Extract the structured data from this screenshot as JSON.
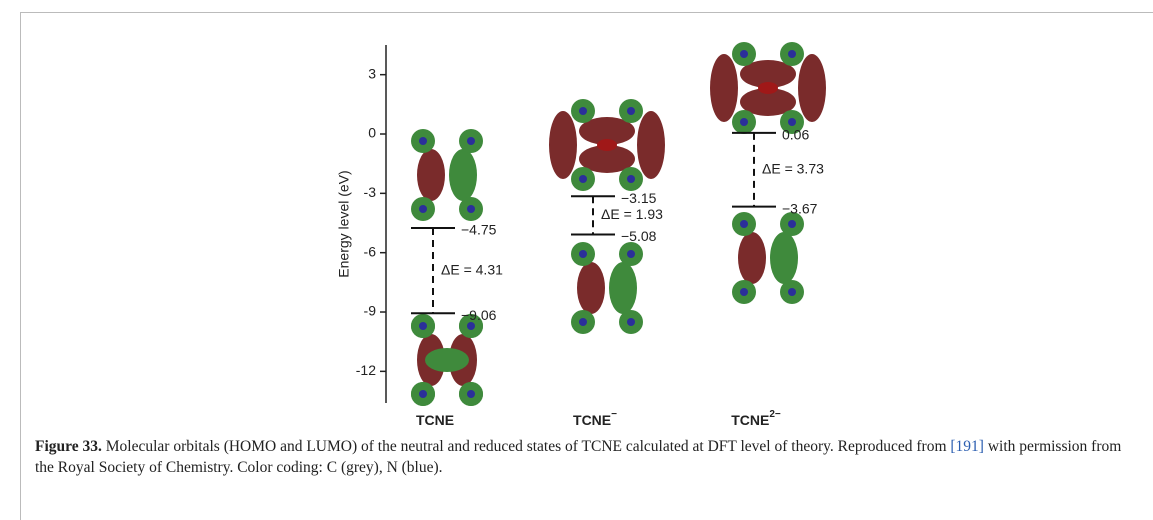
{
  "chart_data": {
    "type": "energy-level",
    "y_label": "Energy level (eV)",
    "ylim": [
      -13.6,
      4.5
    ],
    "yticks": [
      3,
      0,
      -3,
      -6,
      -9,
      -12
    ],
    "categories": [
      "TCNE",
      "TCNE",
      "TCNE"
    ],
    "category_superscripts": [
      null,
      "−",
      "2−"
    ],
    "lumo": {
      "values": [
        -4.75,
        -3.15,
        0.06
      ],
      "value_labels": [
        "−4.75",
        "−3.15",
        "0.06"
      ]
    },
    "homo": {
      "values": [
        -9.06,
        -5.08,
        -3.67
      ],
      "value_labels": [
        "−9.06",
        "−5.08",
        "−3.67"
      ]
    },
    "gap": {
      "values": [
        4.31,
        1.93,
        3.73
      ],
      "value_labels": [
        "ΔE = 4.31",
        "ΔE = 1.93",
        "ΔE = 3.73"
      ]
    }
  },
  "caption": {
    "label": "Figure 33.",
    "text_1": "Molecular orbitals (HOMO and LUMO) of the neutral and reduced states of TCNE calculated at DFT level of theory. Reproduced from",
    "ref": "[191]",
    "text_2": "with permission from the Royal Society of Chemistry. Color coding: C (grey), N (blue)."
  }
}
